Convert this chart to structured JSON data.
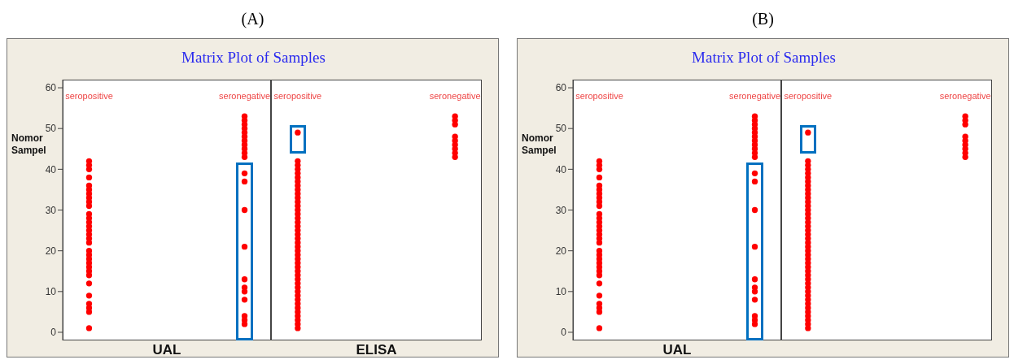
{
  "chart_data": [
    {
      "type": "scatter",
      "title": "(A)",
      "subtitle": "Matrix Plot of Samples",
      "xlabel": "UAL",
      "ylabel": "Nomor Sampel",
      "categories": [
        "seropositive",
        "seronegative"
      ],
      "marker": "circle",
      "ylim": [
        -2,
        62
      ],
      "yticks": [
        0,
        10,
        20,
        30,
        40,
        50,
        60
      ],
      "series": [
        {
          "color": "#ff0000",
          "x": [
            "seropositive",
            "seropositive",
            "seropositive",
            "seropositive",
            "seropositive",
            "seropositive",
            "seropositive",
            "seropositive",
            "seropositive",
            "seropositive",
            "seropositive",
            "seropositive",
            "seropositive",
            "seropositive",
            "seropositive",
            "seropositive",
            "seropositive",
            "seropositive",
            "seropositive",
            "seropositive",
            "seropositive",
            "seropositive",
            "seropositive",
            "seropositive",
            "seropositive",
            "seropositive",
            "seropositive",
            "seropositive",
            "seropositive",
            "seropositive",
            "seropositive"
          ],
          "values": [
            1,
            5,
            6,
            7,
            9,
            12,
            14,
            15,
            16,
            17,
            18,
            19,
            20,
            22,
            23,
            24,
            25,
            26,
            27,
            28,
            29,
            31,
            32,
            33,
            34,
            35,
            36,
            38,
            40,
            41,
            42
          ]
        },
        {
          "color": "#ff0000",
          "x": [
            "seronegative",
            "seronegative",
            "seronegative",
            "seronegative",
            "seronegative",
            "seronegative",
            "seronegative",
            "seronegative",
            "seronegative",
            "seronegative",
            "seronegative",
            "seronegative",
            "seronegative",
            "seronegative",
            "seronegative",
            "seronegative",
            "seronegative",
            "seronegative",
            "seronegative",
            "seronegative",
            "seronegative",
            "seronegative"
          ],
          "values": [
            2,
            3,
            4,
            8,
            10,
            11,
            13,
            21,
            30,
            37,
            39,
            43,
            44,
            45,
            46,
            47,
            48,
            49,
            50,
            51,
            52,
            53
          ]
        }
      ]
    },
    {
      "type": "scatter",
      "xlabel": "ELISA",
      "categories": [
        "seropositive",
        "seronegative"
      ],
      "marker": "circle",
      "ylim": [
        -2,
        62
      ],
      "yticks": [
        0,
        10,
        20,
        30,
        40,
        50,
        60
      ],
      "tick_labels": "x",
      "series": [
        {
          "color": "#ff0000",
          "x": [
            "seropositive",
            "seropositive",
            "seropositive",
            "seropositive",
            "seropositive",
            "seropositive",
            "seropositive",
            "seropositive",
            "seropositive",
            "seropositive",
            "seropositive",
            "seropositive",
            "seropositive",
            "seropositive",
            "seropositive",
            "seropositive",
            "seropositive",
            "seropositive",
            "seropositive",
            "seropositive",
            "seropositive",
            "seropositive",
            "seropositive",
            "seropositive",
            "seropositive",
            "seropositive",
            "seropositive",
            "seropositive",
            "seropositive",
            "seropositive",
            "seropositive",
            "seropositive",
            "seropositive",
            "seropositive",
            "seropositive",
            "seropositive",
            "seropositive",
            "seropositive",
            "seropositive",
            "seropositive",
            "seropositive",
            "seropositive",
            "seropositive"
          ],
          "values": [
            1,
            2,
            3,
            4,
            5,
            6,
            7,
            8,
            9,
            10,
            11,
            12,
            13,
            14,
            15,
            16,
            17,
            18,
            19,
            20,
            21,
            22,
            23,
            24,
            25,
            26,
            27,
            28,
            29,
            30,
            31,
            32,
            33,
            34,
            35,
            36,
            37,
            38,
            39,
            40,
            41,
            42,
            49
          ]
        },
        {
          "color": "#ff0000",
          "x": [
            "seronegative",
            "seronegative",
            "seronegative",
            "seronegative",
            "seronegative",
            "seronegative",
            "seronegative",
            "seronegative",
            "seronegative"
          ],
          "values": [
            43,
            44,
            45,
            46,
            47,
            48,
            51,
            52,
            53
          ]
        }
      ]
    },
    {
      "type": "scatter",
      "title": "(B)",
      "subtitle": "Matrix Plot of Samples",
      "xlabel": "UAL",
      "ylabel": "Nomor Sampel",
      "categories": [
        "seropositive",
        "seronegative"
      ],
      "marker": "circle",
      "ylim": [
        -2,
        62
      ],
      "yticks": [
        0,
        10,
        20,
        30,
        40,
        50,
        60
      ],
      "series": [
        {
          "color": "#ff0000",
          "x": [
            "seropositive",
            "seropositive",
            "seropositive",
            "seropositive",
            "seropositive",
            "seropositive",
            "seropositive",
            "seropositive",
            "seropositive",
            "seropositive",
            "seropositive",
            "seropositive",
            "seropositive",
            "seropositive",
            "seropositive",
            "seropositive",
            "seropositive",
            "seropositive",
            "seropositive",
            "seropositive",
            "seropositive",
            "seropositive",
            "seropositive",
            "seropositive",
            "seropositive",
            "seropositive",
            "seropositive",
            "seropositive",
            "seropositive",
            "seropositive",
            "seropositive"
          ],
          "values": [
            1,
            5,
            6,
            7,
            9,
            12,
            14,
            15,
            16,
            17,
            18,
            19,
            20,
            22,
            23,
            24,
            25,
            26,
            27,
            28,
            29,
            31,
            32,
            33,
            34,
            35,
            36,
            38,
            40,
            41,
            42
          ]
        },
        {
          "color": "#ff0000",
          "x": [
            "seronegative",
            "seronegative",
            "seronegative",
            "seronegative",
            "seronegative",
            "seronegative",
            "seronegative",
            "seronegative",
            "seronegative",
            "seronegative",
            "seronegative",
            "seronegative",
            "seronegative",
            "seronegative",
            "seronegative",
            "seronegative",
            "seronegative",
            "seronegative",
            "seronegative",
            "seronegative",
            "seronegative",
            "seronegative"
          ],
          "values": [
            2,
            3,
            4,
            8,
            10,
            11,
            13,
            21,
            30,
            37,
            39,
            43,
            44,
            45,
            46,
            47,
            48,
            49,
            50,
            51,
            52,
            53
          ]
        }
      ]
    },
    {
      "type": "scatter",
      "categories": [
        "seropositive",
        "seronegative"
      ],
      "marker": "circle",
      "ylim": [
        -2,
        62
      ],
      "yticks": [
        0,
        10,
        20,
        30,
        40,
        50,
        60
      ],
      "tick_labels": "x",
      "series": [
        {
          "color": "#ff0000",
          "x": [
            "seropositive",
            "seropositive",
            "seropositive",
            "seropositive",
            "seropositive",
            "seropositive",
            "seropositive",
            "seropositive",
            "seropositive",
            "seropositive",
            "seropositive",
            "seropositive",
            "seropositive",
            "seropositive",
            "seropositive",
            "seropositive",
            "seropositive",
            "seropositive",
            "seropositive",
            "seropositive",
            "seropositive",
            "seropositive",
            "seropositive",
            "seropositive",
            "seropositive",
            "seropositive",
            "seropositive",
            "seropositive",
            "seropositive",
            "seropositive",
            "seropositive",
            "seropositive",
            "seropositive",
            "seropositive",
            "seropositive",
            "seropositive",
            "seropositive",
            "seropositive",
            "seropositive",
            "seropositive",
            "seropositive",
            "seropositive",
            "seropositive"
          ],
          "values": [
            1,
            2,
            3,
            4,
            5,
            6,
            7,
            8,
            9,
            10,
            11,
            12,
            13,
            14,
            15,
            16,
            17,
            18,
            19,
            20,
            21,
            22,
            23,
            24,
            25,
            26,
            27,
            28,
            29,
            30,
            31,
            32,
            33,
            34,
            35,
            36,
            37,
            38,
            39,
            40,
            41,
            42,
            49
          ]
        },
        {
          "color": "#ff0000",
          "x": [
            "seronegative",
            "seronegative",
            "seronegative",
            "seronegative",
            "seronegative",
            "seronegative",
            "seronegative",
            "seronegative",
            "seronegative"
          ],
          "values": [
            43,
            44,
            45,
            46,
            47,
            48,
            51,
            52,
            53
          ]
        }
      ]
    }
  ]
}
